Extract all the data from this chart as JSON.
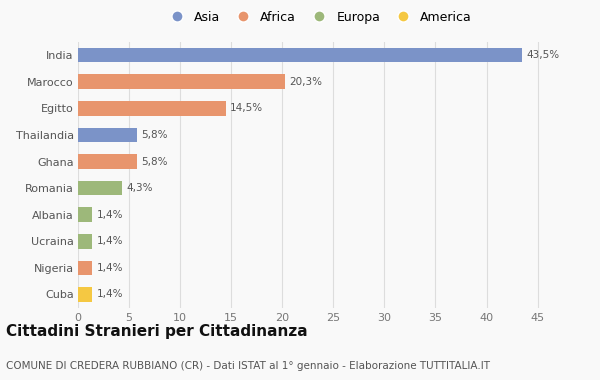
{
  "categories": [
    "Cuba",
    "Nigeria",
    "Ucraina",
    "Albania",
    "Romania",
    "Ghana",
    "Thailandia",
    "Egitto",
    "Marocco",
    "India"
  ],
  "values": [
    1.4,
    1.4,
    1.4,
    1.4,
    4.3,
    5.8,
    5.8,
    14.5,
    20.3,
    43.5
  ],
  "labels": [
    "1,4%",
    "1,4%",
    "1,4%",
    "1,4%",
    "4,3%",
    "5,8%",
    "5,8%",
    "14,5%",
    "20,3%",
    "43,5%"
  ],
  "colors": [
    "#F5C842",
    "#E8956D",
    "#9DB87A",
    "#9DB87A",
    "#9DB87A",
    "#E8956D",
    "#7B93C8",
    "#E8956D",
    "#E8956D",
    "#7B93C8"
  ],
  "legend": [
    {
      "label": "Asia",
      "color": "#7B93C8"
    },
    {
      "label": "Africa",
      "color": "#E8956D"
    },
    {
      "label": "Europa",
      "color": "#9DB87A"
    },
    {
      "label": "America",
      "color": "#F5C842"
    }
  ],
  "xlim": [
    0,
    47
  ],
  "xticks": [
    0,
    5,
    10,
    15,
    20,
    25,
    30,
    35,
    40,
    45
  ],
  "title": "Cittadini Stranieri per Cittadinanza",
  "subtitle": "COMUNE DI CREDERA RUBBIANO (CR) - Dati ISTAT al 1° gennaio - Elaborazione TUTTITALIA.IT",
  "background_color": "#f9f9f9",
  "grid_color": "#dddddd",
  "bar_height": 0.55,
  "label_fontsize": 7.5,
  "tick_fontsize": 8,
  "title_fontsize": 11,
  "subtitle_fontsize": 7.5,
  "legend_fontsize": 9
}
